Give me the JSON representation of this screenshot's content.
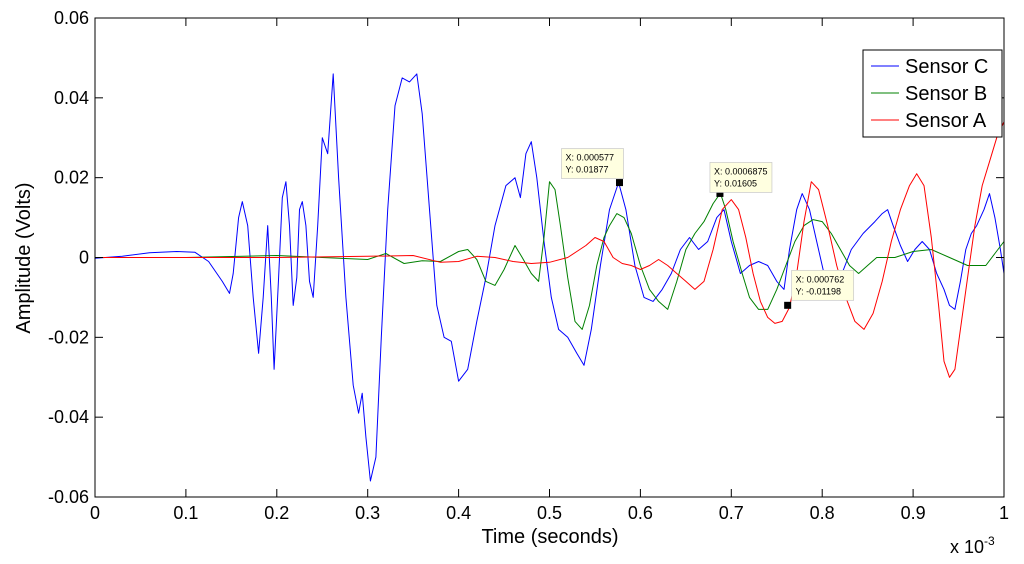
{
  "chart_data": {
    "type": "line",
    "xlabel": "Time (seconds)",
    "ylabel": "Amplitude (Volts)",
    "x_multiplier_label": "x 10",
    "x_multiplier_exponent": "-3",
    "xlim": [
      0,
      1
    ],
    "ylim": [
      -0.06,
      0.06
    ],
    "x_ticks": [
      0,
      0.1,
      0.2,
      0.3,
      0.4,
      0.5,
      0.6,
      0.7,
      0.8,
      0.9,
      1
    ],
    "x_tick_labels": [
      "0",
      "0.1",
      "0.2",
      "0.3",
      "0.4",
      "0.5",
      "0.6",
      "0.7",
      "0.8",
      "0.9",
      "1"
    ],
    "y_ticks": [
      -0.06,
      -0.04,
      -0.02,
      0,
      0.02,
      0.04,
      0.06
    ],
    "y_tick_labels": [
      "-0.06",
      "-0.04",
      "-0.02",
      "0",
      "0.02",
      "0.04",
      "0.06"
    ],
    "grid": false,
    "legend_position": "top-right",
    "series": [
      {
        "name": "Sensor C",
        "color": "#0000ff",
        "points": [
          [
            0,
            -0.0002
          ],
          [
            0.03,
            0.0003
          ],
          [
            0.06,
            0.0012
          ],
          [
            0.09,
            0.0015
          ],
          [
            0.11,
            0.0013
          ],
          [
            0.125,
            -0.001
          ],
          [
            0.14,
            -0.006
          ],
          [
            0.148,
            -0.009
          ],
          [
            0.152,
            -0.004
          ],
          [
            0.158,
            0.01
          ],
          [
            0.162,
            0.014
          ],
          [
            0.168,
            0.008
          ],
          [
            0.174,
            -0.01
          ],
          [
            0.18,
            -0.024
          ],
          [
            0.185,
            -0.01
          ],
          [
            0.19,
            0.008
          ],
          [
            0.194,
            -0.01
          ],
          [
            0.197,
            -0.028
          ],
          [
            0.202,
            -0.005
          ],
          [
            0.206,
            0.015
          ],
          [
            0.21,
            0.019
          ],
          [
            0.214,
            0.008
          ],
          [
            0.218,
            -0.012
          ],
          [
            0.222,
            -0.005
          ],
          [
            0.225,
            0.012
          ],
          [
            0.228,
            0.014
          ],
          [
            0.232,
            0.008
          ],
          [
            0.236,
            -0.006
          ],
          [
            0.24,
            -0.01
          ],
          [
            0.245,
            0.008
          ],
          [
            0.25,
            0.03
          ],
          [
            0.256,
            0.026
          ],
          [
            0.262,
            0.046
          ],
          [
            0.268,
            0.02
          ],
          [
            0.276,
            -0.01
          ],
          [
            0.284,
            -0.032
          ],
          [
            0.29,
            -0.039
          ],
          [
            0.294,
            -0.034
          ],
          [
            0.298,
            -0.045
          ],
          [
            0.303,
            -0.056
          ],
          [
            0.309,
            -0.05
          ],
          [
            0.315,
            -0.02
          ],
          [
            0.322,
            0.012
          ],
          [
            0.33,
            0.038
          ],
          [
            0.338,
            0.045
          ],
          [
            0.346,
            0.044
          ],
          [
            0.354,
            0.046
          ],
          [
            0.36,
            0.036
          ],
          [
            0.368,
            0.012
          ],
          [
            0.376,
            -0.012
          ],
          [
            0.384,
            -0.02
          ],
          [
            0.392,
            -0.021
          ],
          [
            0.4,
            -0.031
          ],
          [
            0.41,
            -0.028
          ],
          [
            0.42,
            -0.016
          ],
          [
            0.43,
            -0.005
          ],
          [
            0.44,
            0.008
          ],
          [
            0.452,
            0.018
          ],
          [
            0.462,
            0.02
          ],
          [
            0.468,
            0.015
          ],
          [
            0.474,
            0.026
          ],
          [
            0.48,
            0.029
          ],
          [
            0.486,
            0.02
          ],
          [
            0.494,
            0.004
          ],
          [
            0.502,
            -0.01
          ],
          [
            0.51,
            -0.018
          ],
          [
            0.52,
            -0.02
          ],
          [
            0.53,
            -0.024
          ],
          [
            0.538,
            -0.027
          ],
          [
            0.546,
            -0.018
          ],
          [
            0.556,
            -0.002
          ],
          [
            0.566,
            0.012
          ],
          [
            0.576,
            0.0188
          ],
          [
            0.584,
            0.012
          ],
          [
            0.594,
            -0.002
          ],
          [
            0.604,
            -0.01
          ],
          [
            0.614,
            -0.011
          ],
          [
            0.624,
            -0.008
          ],
          [
            0.634,
            -0.004
          ],
          [
            0.644,
            0.002
          ],
          [
            0.654,
            0.005
          ],
          [
            0.664,
            0.002
          ],
          [
            0.674,
            0.004
          ],
          [
            0.684,
            0.01
          ],
          [
            0.692,
            0.012
          ],
          [
            0.7,
            0.004
          ],
          [
            0.71,
            -0.004
          ],
          [
            0.72,
            -0.002
          ],
          [
            0.73,
            -0.001
          ],
          [
            0.74,
            -0.002
          ],
          [
            0.75,
            -0.006
          ],
          [
            0.758,
            -0.008
          ],
          [
            0.764,
            0.002
          ],
          [
            0.772,
            0.012
          ],
          [
            0.778,
            0.016
          ],
          [
            0.786,
            0.012
          ],
          [
            0.794,
            0.004
          ],
          [
            0.802,
            -0.004
          ],
          [
            0.81,
            -0.007
          ],
          [
            0.82,
            -0.005
          ],
          [
            0.832,
            0.002
          ],
          [
            0.845,
            0.006
          ],
          [
            0.858,
            0.009
          ],
          [
            0.866,
            0.011
          ],
          [
            0.872,
            0.012
          ],
          [
            0.878,
            0.008
          ],
          [
            0.886,
            0.003
          ],
          [
            0.894,
            -0.001
          ],
          [
            0.902,
            0.002
          ],
          [
            0.91,
            0.004
          ],
          [
            0.918,
            0.002
          ],
          [
            0.926,
            -0.004
          ],
          [
            0.934,
            -0.008
          ],
          [
            0.94,
            -0.012
          ],
          [
            0.946,
            -0.013
          ],
          [
            0.952,
            -0.006
          ],
          [
            0.958,
            0.002
          ],
          [
            0.964,
            0.006
          ],
          [
            0.97,
            0.008
          ],
          [
            0.978,
            0.012
          ],
          [
            0.984,
            0.016
          ],
          [
            0.99,
            0.01
          ],
          [
            0.996,
            0.002
          ],
          [
            1.0,
            -0.004
          ]
        ]
      },
      {
        "name": "Sensor B",
        "color": "#008000",
        "points": [
          [
            0,
            0
          ],
          [
            0.1,
            0.0
          ],
          [
            0.2,
            0.0005
          ],
          [
            0.3,
            -0.0005
          ],
          [
            0.32,
            0.001
          ],
          [
            0.34,
            -0.0015
          ],
          [
            0.36,
            -0.0008
          ],
          [
            0.38,
            -0.001
          ],
          [
            0.4,
            0.0015
          ],
          [
            0.41,
            0.002
          ],
          [
            0.42,
            -0.0005
          ],
          [
            0.43,
            -0.006
          ],
          [
            0.44,
            -0.007
          ],
          [
            0.45,
            -0.003
          ],
          [
            0.462,
            0.003
          ],
          [
            0.47,
            0.0
          ],
          [
            0.48,
            -0.004
          ],
          [
            0.488,
            -0.006
          ],
          [
            0.494,
            0.005
          ],
          [
            0.5,
            0.019
          ],
          [
            0.506,
            0.017
          ],
          [
            0.512,
            0.008
          ],
          [
            0.52,
            -0.005
          ],
          [
            0.528,
            -0.016
          ],
          [
            0.536,
            -0.018
          ],
          [
            0.544,
            -0.012
          ],
          [
            0.552,
            -0.002
          ],
          [
            0.56,
            0.005
          ],
          [
            0.566,
            0.008
          ],
          [
            0.574,
            0.011
          ],
          [
            0.582,
            0.01
          ],
          [
            0.59,
            0.006
          ],
          [
            0.6,
            -0.002
          ],
          [
            0.61,
            -0.008
          ],
          [
            0.62,
            -0.011
          ],
          [
            0.63,
            -0.013
          ],
          [
            0.64,
            -0.006
          ],
          [
            0.65,
            0.002
          ],
          [
            0.66,
            0.006
          ],
          [
            0.67,
            0.009
          ],
          [
            0.68,
            0.0135
          ],
          [
            0.688,
            0.0161
          ],
          [
            0.694,
            0.012
          ],
          [
            0.702,
            0.004
          ],
          [
            0.712,
            -0.004
          ],
          [
            0.72,
            -0.01
          ],
          [
            0.73,
            -0.013
          ],
          [
            0.74,
            -0.013
          ],
          [
            0.75,
            -0.008
          ],
          [
            0.76,
            -0.002
          ],
          [
            0.77,
            0.004
          ],
          [
            0.78,
            0.008
          ],
          [
            0.79,
            0.0095
          ],
          [
            0.8,
            0.009
          ],
          [
            0.81,
            0.006
          ],
          [
            0.82,
            0.002
          ],
          [
            0.83,
            -0.002
          ],
          [
            0.84,
            -0.004
          ],
          [
            0.85,
            -0.002
          ],
          [
            0.86,
            0.0
          ],
          [
            0.88,
            0.0
          ],
          [
            0.9,
            0.0015
          ],
          [
            0.92,
            0.002
          ],
          [
            0.94,
            0.0
          ],
          [
            0.96,
            -0.002
          ],
          [
            0.98,
            -0.002
          ],
          [
            0.99,
            0.001
          ],
          [
            1.0,
            0.004
          ]
        ]
      },
      {
        "name": "Sensor A",
        "color": "#ff0000",
        "points": [
          [
            0,
            0
          ],
          [
            0.1,
            0
          ],
          [
            0.2,
            0
          ],
          [
            0.3,
            0.0003
          ],
          [
            0.35,
            0.0005
          ],
          [
            0.38,
            -0.0012
          ],
          [
            0.4,
            -0.001
          ],
          [
            0.42,
            0.0003
          ],
          [
            0.44,
            0.0
          ],
          [
            0.46,
            -0.001
          ],
          [
            0.48,
            -0.0015
          ],
          [
            0.5,
            -0.0012
          ],
          [
            0.52,
            0.0
          ],
          [
            0.53,
            0.0015
          ],
          [
            0.54,
            0.003
          ],
          [
            0.55,
            0.005
          ],
          [
            0.56,
            0.004
          ],
          [
            0.57,
            0.0
          ],
          [
            0.58,
            -0.0015
          ],
          [
            0.59,
            -0.002
          ],
          [
            0.6,
            -0.003
          ],
          [
            0.61,
            -0.002
          ],
          [
            0.62,
            -0.0005
          ],
          [
            0.63,
            -0.002
          ],
          [
            0.64,
            -0.004
          ],
          [
            0.65,
            -0.006
          ],
          [
            0.66,
            -0.008
          ],
          [
            0.67,
            -0.006
          ],
          [
            0.68,
            0.002
          ],
          [
            0.69,
            0.012
          ],
          [
            0.7,
            0.0145
          ],
          [
            0.708,
            0.012
          ],
          [
            0.716,
            0.005
          ],
          [
            0.724,
            -0.004
          ],
          [
            0.732,
            -0.011
          ],
          [
            0.74,
            -0.015
          ],
          [
            0.748,
            -0.0165
          ],
          [
            0.756,
            -0.016
          ],
          [
            0.764,
            -0.0125
          ],
          [
            0.772,
            -0.004
          ],
          [
            0.78,
            0.009
          ],
          [
            0.788,
            0.019
          ],
          [
            0.796,
            0.017
          ],
          [
            0.806,
            0.008
          ],
          [
            0.816,
            -0.002
          ],
          [
            0.826,
            -0.01
          ],
          [
            0.836,
            -0.016
          ],
          [
            0.846,
            -0.018
          ],
          [
            0.856,
            -0.014
          ],
          [
            0.866,
            -0.006
          ],
          [
            0.876,
            0.004
          ],
          [
            0.886,
            0.012
          ],
          [
            0.896,
            0.018
          ],
          [
            0.904,
            0.021
          ],
          [
            0.912,
            0.018
          ],
          [
            0.92,
            0.005
          ],
          [
            0.928,
            -0.012
          ],
          [
            0.934,
            -0.026
          ],
          [
            0.94,
            -0.03
          ],
          [
            0.946,
            -0.028
          ],
          [
            0.952,
            -0.018
          ],
          [
            0.96,
            -0.005
          ],
          [
            0.968,
            0.008
          ],
          [
            0.976,
            0.018
          ],
          [
            0.984,
            0.024
          ],
          [
            0.992,
            0.03
          ],
          [
            1.0,
            0.034
          ]
        ]
      }
    ],
    "annotations": [
      {
        "x": 0.000577,
        "y": 0.01877,
        "line1": "X: 0.000577",
        "line2": "Y: 0.01877"
      },
      {
        "x": 0.0006875,
        "y": 0.01605,
        "line1": "X: 0.0006875",
        "line2": "Y: 0.01605"
      },
      {
        "x": 0.000762,
        "y": -0.01198,
        "line1": "X: 0.000762",
        "line2": "Y: -0.01198"
      }
    ]
  }
}
